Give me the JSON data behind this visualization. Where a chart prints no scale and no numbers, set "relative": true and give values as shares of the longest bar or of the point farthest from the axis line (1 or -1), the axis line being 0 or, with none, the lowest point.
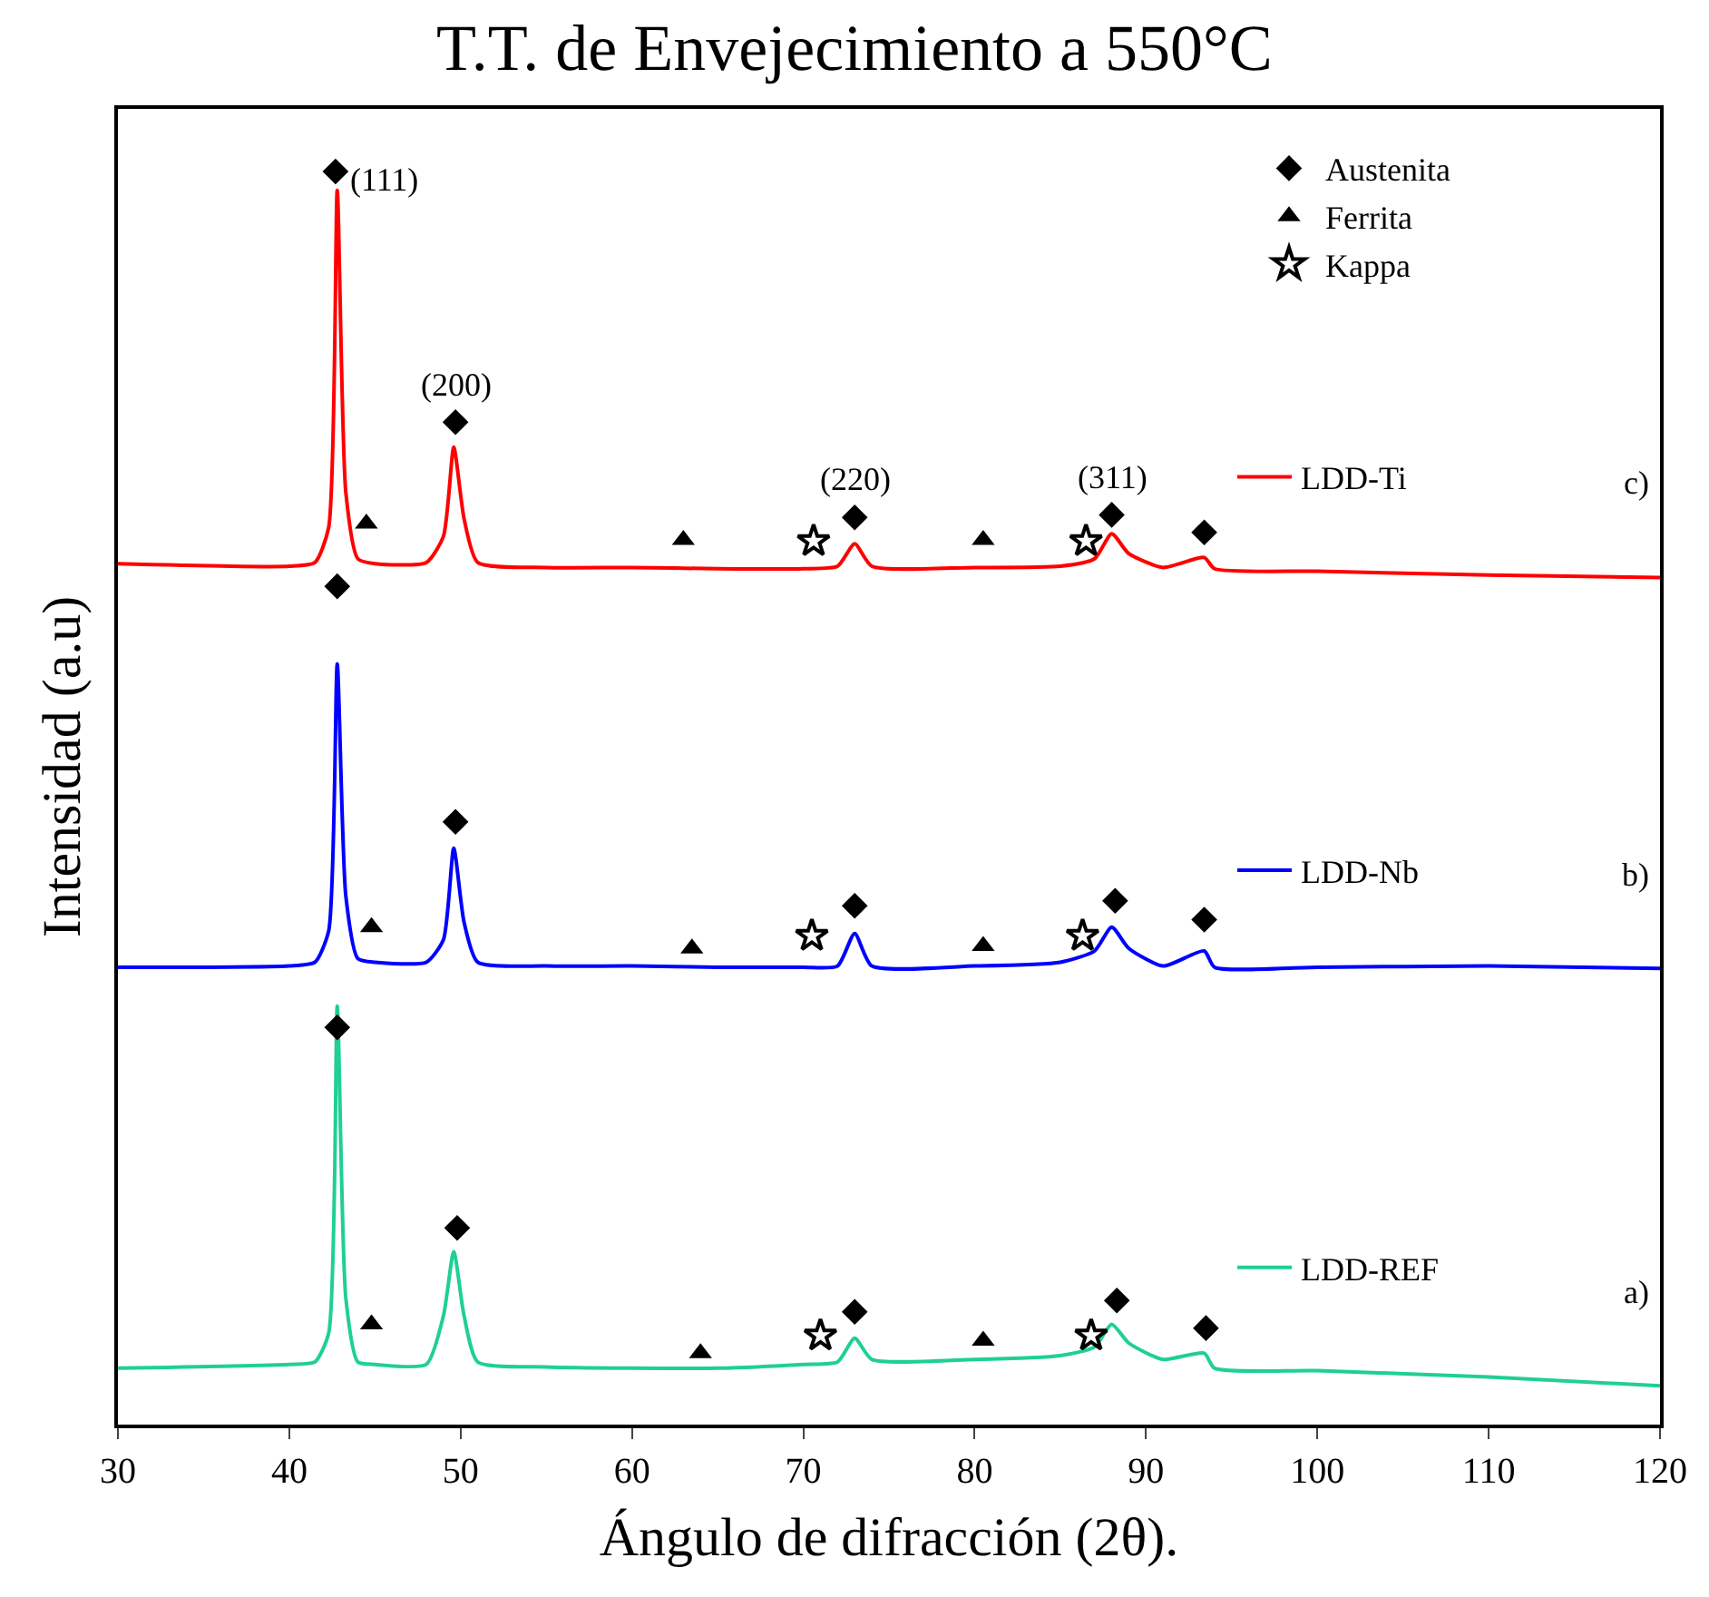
{
  "chart_data": {
    "type": "line",
    "title": "T.T. de Envejecimiento a 550°C",
    "xlabel": "Ángulo de difracción (2θ).",
    "ylabel": "Intensidad (a.u)",
    "relative": true,
    "xlim": [
      30,
      120
    ],
    "xticks": [
      30,
      40,
      50,
      60,
      70,
      80,
      90,
      100,
      110,
      120
    ],
    "legend": "top right",
    "series": [
      {
        "name": "LDD-Ti",
        "color": "#ff0000",
        "x": [
          30,
          40,
          41.5,
          42.3,
          42.8,
          43.3,
          44,
          45,
          48,
          49,
          49.6,
          50.2,
          51,
          55,
          60,
          65,
          70,
          72,
          73,
          74,
          80,
          85,
          87,
          88,
          89,
          91,
          93.4,
          94,
          100,
          110,
          120
        ],
        "values": [
          0.687,
          0.685,
          0.688,
          0.716,
          0.985,
          0.744,
          0.691,
          0.687,
          0.688,
          0.709,
          0.78,
          0.723,
          0.688,
          0.684,
          0.684,
          0.683,
          0.683,
          0.685,
          0.703,
          0.685,
          0.684,
          0.685,
          0.691,
          0.711,
          0.695,
          0.684,
          0.692,
          0.683,
          0.681,
          0.678,
          0.676
        ]
      },
      {
        "name": "LDD-Nb",
        "color": "#0000ff",
        "x": [
          30,
          40,
          41.5,
          42.3,
          42.8,
          43.3,
          44,
          45,
          48,
          49,
          49.6,
          50.2,
          51,
          55,
          60,
          65,
          70,
          72,
          73,
          74,
          80,
          85,
          87,
          88,
          89,
          91,
          93.4,
          94,
          100,
          110,
          120
        ],
        "values": [
          0.365,
          0.366,
          0.369,
          0.394,
          0.607,
          0.422,
          0.372,
          0.369,
          0.369,
          0.387,
          0.46,
          0.401,
          0.369,
          0.366,
          0.366,
          0.365,
          0.365,
          0.366,
          0.392,
          0.366,
          0.366,
          0.369,
          0.378,
          0.397,
          0.38,
          0.366,
          0.378,
          0.365,
          0.365,
          0.366,
          0.364
        ]
      },
      {
        "name": "LDD-REF",
        "color": "#1fcf96",
        "x": [
          30,
          40,
          41.5,
          42.3,
          42.8,
          43.3,
          44,
          45,
          48,
          49,
          49.6,
          50.2,
          51,
          55,
          60,
          65,
          70,
          72,
          73,
          74,
          80,
          85,
          87,
          88,
          89,
          91,
          93.4,
          94,
          100,
          110,
          120
        ],
        "values": [
          0.045,
          0.048,
          0.05,
          0.073,
          0.334,
          0.101,
          0.05,
          0.048,
          0.048,
          0.087,
          0.138,
          0.087,
          0.05,
          0.046,
          0.045,
          0.045,
          0.048,
          0.05,
          0.069,
          0.052,
          0.052,
          0.055,
          0.062,
          0.08,
          0.065,
          0.052,
          0.057,
          0.045,
          0.043,
          0.038,
          0.031
        ]
      },
      {
        "name": "Austenita",
        "type": "scatter",
        "marker": "diamond",
        "color": "#000000",
        "x": [
          42.7,
          49.7,
          73,
          88,
          93.4,
          42.8,
          49.7,
          73,
          88.2,
          93.4,
          42.8,
          49.8,
          73,
          88.3,
          93.5
        ],
        "values": [
          1.0,
          0.8,
          0.724,
          0.726,
          0.712,
          0.669,
          0.481,
          0.414,
          0.418,
          0.403,
          0.317,
          0.157,
          0.09,
          0.099,
          0.077
        ]
      },
      {
        "name": "Ferrita",
        "type": "scatter",
        "marker": "triangle",
        "color": "#000000",
        "x": [
          44.5,
          63,
          80.5,
          44.8,
          63.5,
          80.5,
          44.8,
          64,
          80.5
        ],
        "values": [
          0.719,
          0.706,
          0.706,
          0.397,
          0.38,
          0.382,
          0.08,
          0.057,
          0.067
        ]
      },
      {
        "name": "Kappa",
        "type": "scatter",
        "marker": "star",
        "color": "#000000",
        "x": [
          70.6,
          86.5,
          70.5,
          86.3,
          71,
          86.8
        ],
        "values": [
          0.705,
          0.705,
          0.39,
          0.39,
          0.071,
          0.071
        ]
      }
    ],
    "annotations": [
      {
        "text": "(111)",
        "x": 42.7,
        "y": 1.0
      },
      {
        "text": "(200)",
        "x": 49.7,
        "y": 0.8
      },
      {
        "text": "(220)",
        "x": 73,
        "y": 0.724
      },
      {
        "text": "(311)",
        "x": 88,
        "y": 0.726
      },
      {
        "text": "c)",
        "x": 120,
        "y": 0.676
      },
      {
        "text": "b)",
        "x": 120,
        "y": 0.364
      },
      {
        "text": "a)",
        "x": 120,
        "y": 0.031
      }
    ]
  }
}
